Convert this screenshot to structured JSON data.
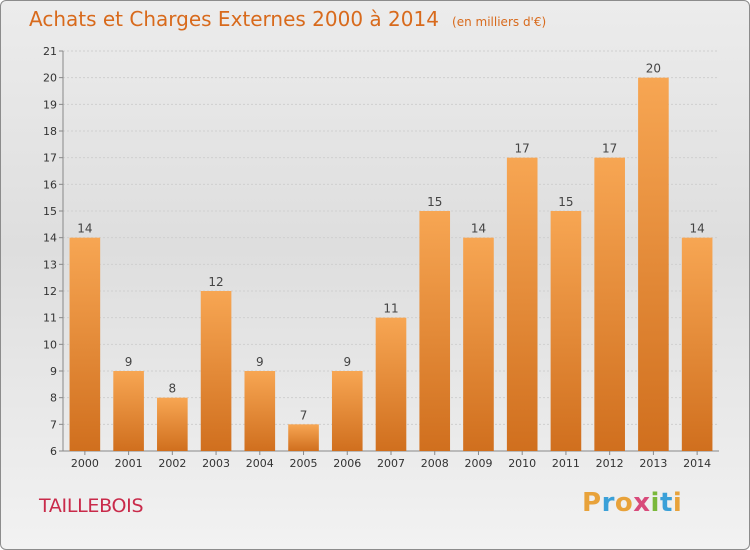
{
  "header": {
    "title": "Achats et Charges Externes 2000 à 2014",
    "subtitle": "(en milliers d'€)"
  },
  "footer": {
    "town": "TAILLEBOIS",
    "brand": "Proxiti",
    "brand_letters": [
      {
        "char": "P",
        "color": "#e8a23a"
      },
      {
        "char": "r",
        "color": "#3aa0d8"
      },
      {
        "char": "o",
        "color": "#e8a23a"
      },
      {
        "char": "x",
        "color": "#d84a7a"
      },
      {
        "char": "i",
        "color": "#7ab83a"
      },
      {
        "char": "t",
        "color": "#3aa0d8"
      },
      {
        "char": "i",
        "color": "#e8a23a"
      }
    ]
  },
  "colors": {
    "bar_light": "#f7a653",
    "bar_dark": "#d06f1e",
    "title": "#d86a1c",
    "town": "#c92a4a"
  },
  "chart_data": {
    "type": "bar",
    "title": "Achats et Charges Externes 2000 à 2014",
    "subtitle": "(en milliers d'€)",
    "xlabel": "",
    "ylabel": "",
    "categories": [
      "2000",
      "2001",
      "2002",
      "2003",
      "2004",
      "2005",
      "2006",
      "2007",
      "2008",
      "2009",
      "2010",
      "2011",
      "2012",
      "2013",
      "2014"
    ],
    "values": [
      14,
      9,
      8,
      12,
      9,
      7,
      9,
      11,
      15,
      14,
      17,
      15,
      17,
      20,
      14
    ],
    "ylim": [
      6,
      21
    ],
    "yticks": [
      6,
      7,
      8,
      9,
      10,
      11,
      12,
      13,
      14,
      15,
      16,
      17,
      18,
      19,
      20,
      21
    ],
    "grid": true
  }
}
